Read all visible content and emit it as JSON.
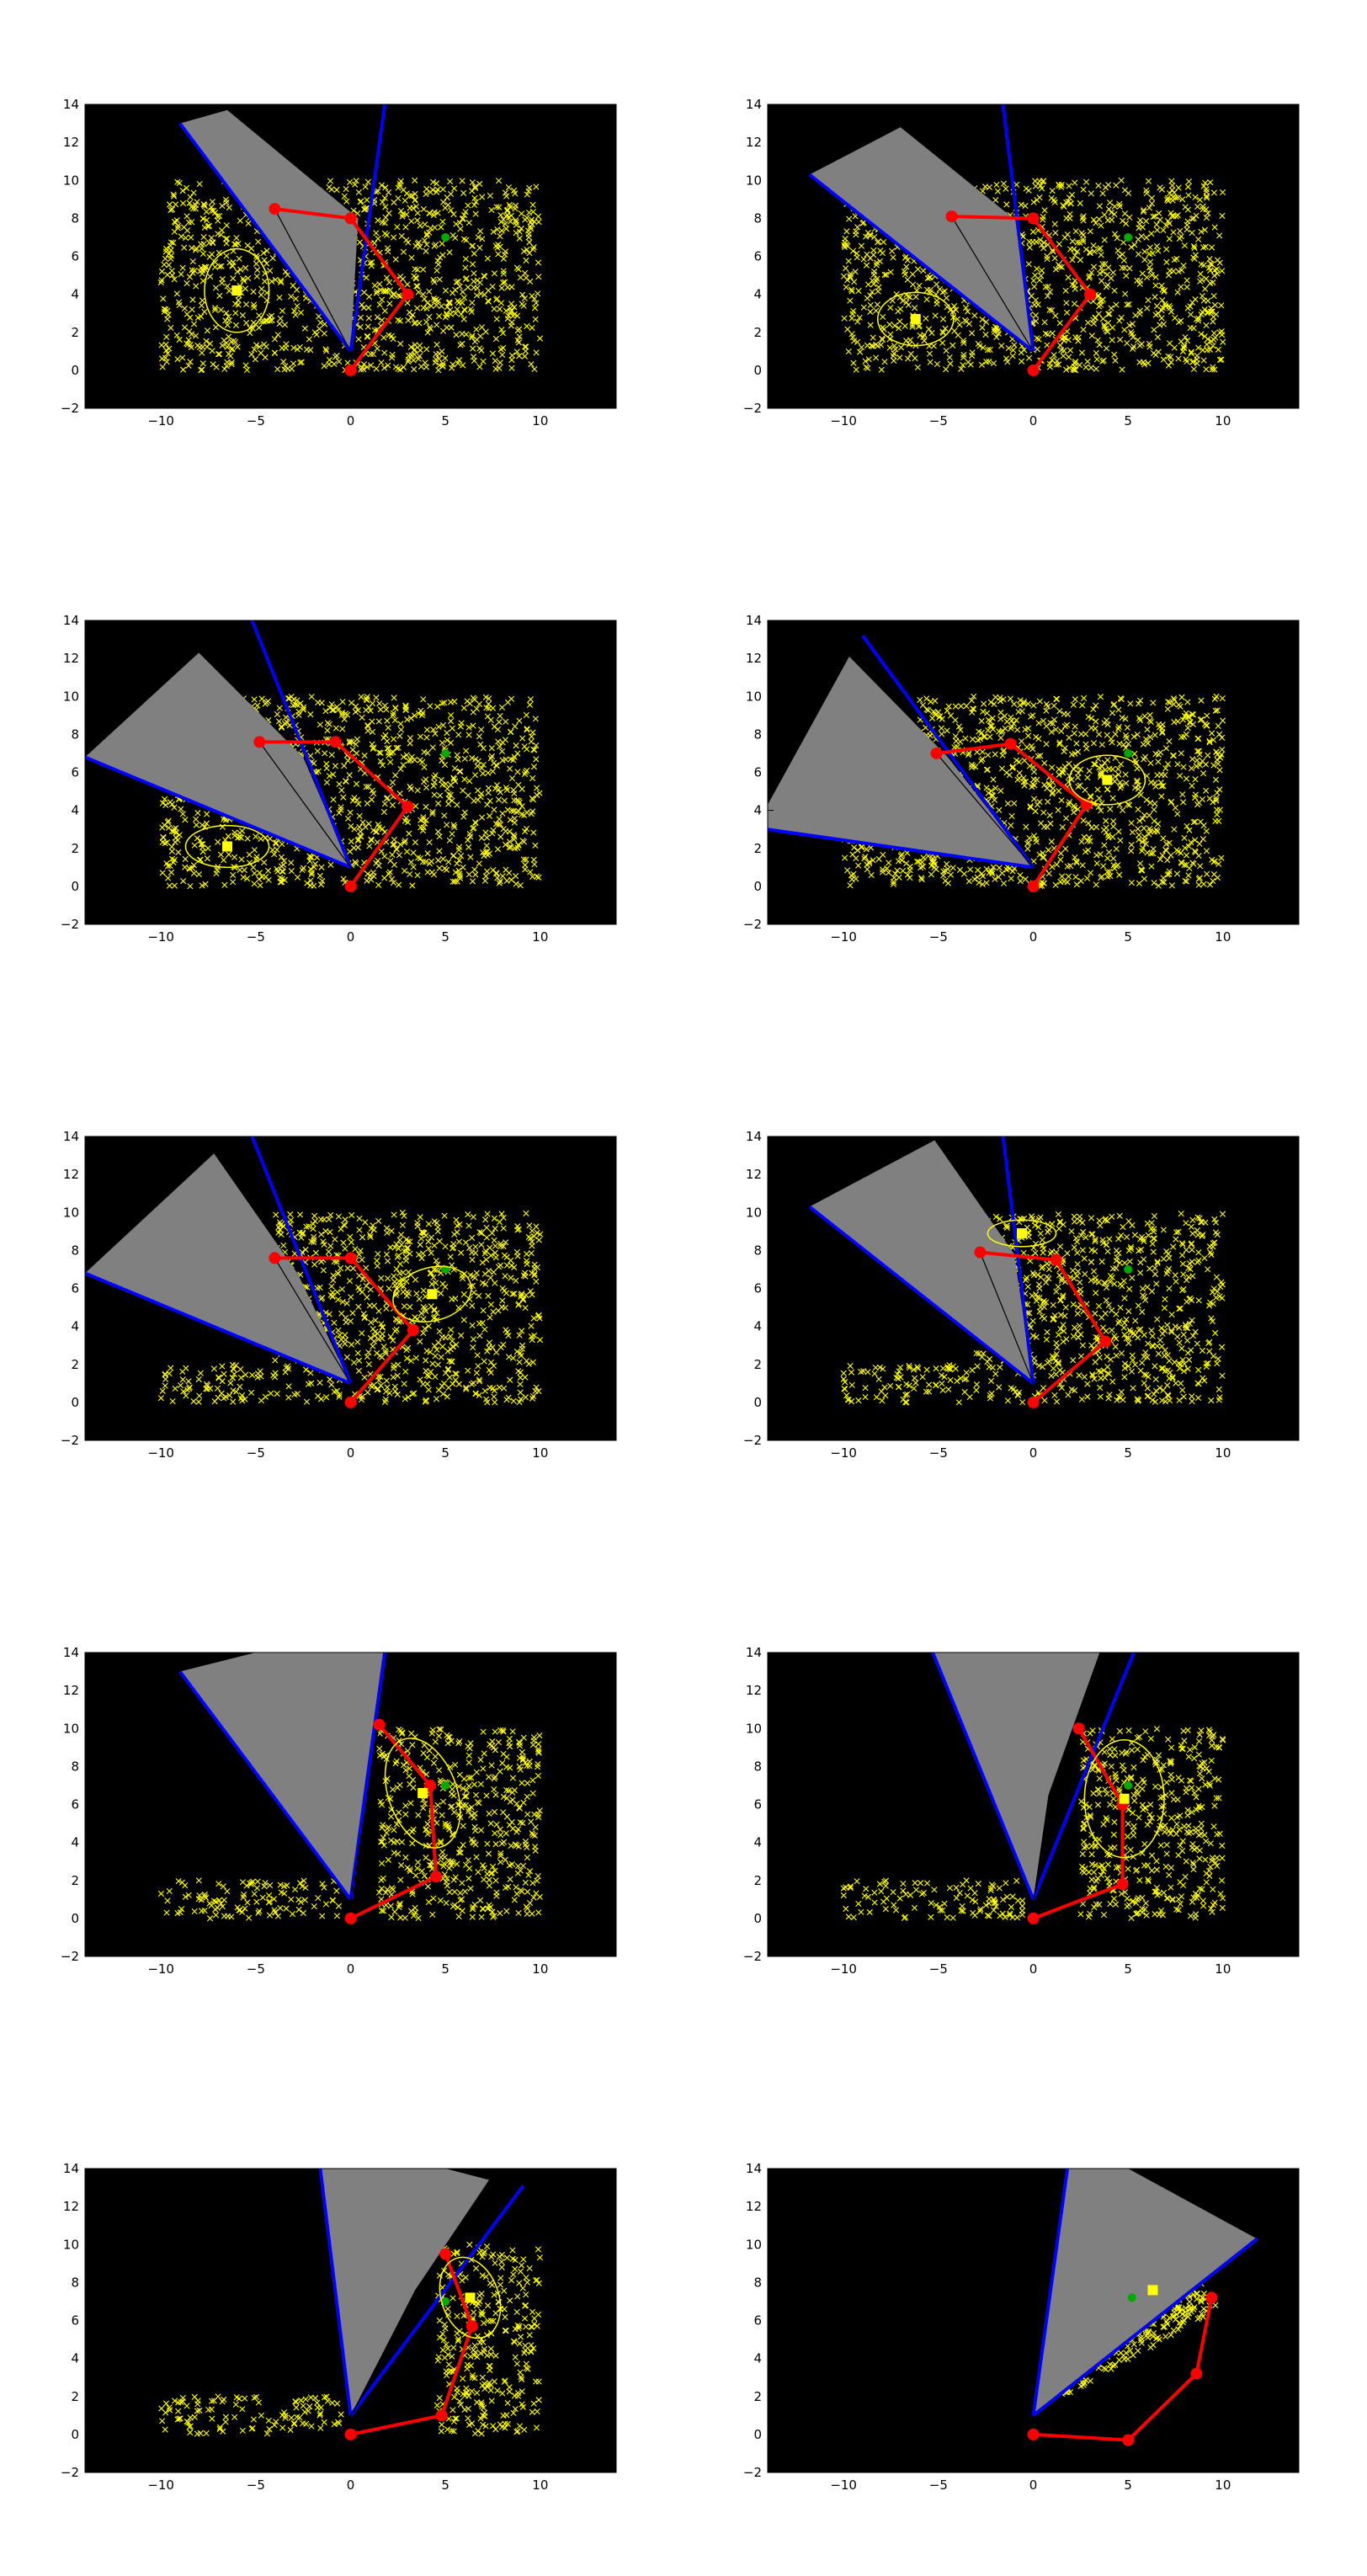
{
  "figure": {
    "colors": {
      "background": "#000000",
      "particles": "#ffff00",
      "arm": "#ff0000",
      "joint": "#ff0000",
      "fov_fill": "#808080",
      "fov_edge": "#0000ff",
      "estimate": "#ffff00",
      "covariance": "#ffff00",
      "target": "#00aa00",
      "center_line": "#000000"
    }
  },
  "chart_data": [
    {
      "type": "scatter",
      "xlim": [
        -14,
        14
      ],
      "ylim": [
        -2,
        14
      ],
      "xticks": [
        -10,
        -5,
        0,
        5,
        10
      ],
      "yticks": [
        -2,
        0,
        2,
        4,
        6,
        8,
        10,
        12,
        14
      ],
      "xtick_labels": [
        "−10",
        "−5",
        "0",
        "5",
        "10"
      ],
      "ytick_labels": [
        "−2",
        "0",
        "2",
        "4",
        "6",
        "8",
        "10",
        "12",
        "14"
      ],
      "grid": false,
      "particles": {
        "rects": [
          [
            -10,
            0,
            10,
            10
          ]
        ]
      },
      "arm_joints": [
        [
          0,
          0
        ],
        [
          3,
          4
        ],
        [
          0,
          8
        ],
        [
          -4,
          8.5
        ]
      ],
      "fov_vertex": [
        0,
        1
      ],
      "fov_edges": [
        [
          -9,
          13
        ],
        [
          1.8,
          14
        ]
      ],
      "fov_polygon": [
        [
          0,
          1
        ],
        [
          -9,
          13
        ],
        [
          -6.5,
          13.7
        ],
        [
          0.4,
          8
        ]
      ],
      "center_line": [
        -4,
        8.5
      ],
      "estimate": [
        -6,
        4.2
      ],
      "covariance": {
        "rx": 1.7,
        "ry": 2.2,
        "rot": 0
      },
      "target": [
        5,
        7
      ]
    },
    {
      "type": "scatter",
      "xlim": [
        -14,
        14
      ],
      "ylim": [
        -2,
        14
      ],
      "xticks": [
        -10,
        -5,
        0,
        5,
        10
      ],
      "yticks": [
        -2,
        0,
        2,
        4,
        6,
        8,
        10,
        12,
        14
      ],
      "xtick_labels": [
        "−10",
        "−5",
        "0",
        "5",
        "10"
      ],
      "ytick_labels": [
        "−2",
        "0",
        "2",
        "4",
        "6",
        "8",
        "10",
        "12",
        "14"
      ],
      "grid": false,
      "particles": {
        "rects": [
          [
            -10,
            0,
            10,
            10
          ]
        ]
      },
      "arm_joints": [
        [
          0,
          0
        ],
        [
          3,
          4
        ],
        [
          0,
          8
        ],
        [
          -4.3,
          8.1
        ]
      ],
      "fov_vertex": [
        0,
        1
      ],
      "fov_edges": [
        [
          -11.8,
          10.3
        ],
        [
          -1.6,
          14
        ]
      ],
      "fov_polygon": [
        [
          0,
          1
        ],
        [
          -11.8,
          10.3
        ],
        [
          -7,
          12.8
        ],
        [
          -0.8,
          7.8
        ]
      ],
      "center_line": [
        -4.3,
        8.1
      ],
      "estimate": [
        -6.2,
        2.7
      ],
      "covariance": {
        "rx": 2,
        "ry": 1.4,
        "rot": 0
      },
      "target": [
        5,
        7
      ]
    },
    {
      "type": "scatter",
      "xlim": [
        -14,
        14
      ],
      "ylim": [
        -2,
        14
      ],
      "xticks": [
        -10,
        -5,
        0,
        5,
        10
      ],
      "yticks": [
        -2,
        0,
        2,
        4,
        6,
        8,
        10,
        12,
        14
      ],
      "xtick_labels": [
        "−10",
        "−5",
        "0",
        "5",
        "10"
      ],
      "ytick_labels": [
        "−2",
        "0",
        "2",
        "4",
        "6",
        "8",
        "10",
        "12",
        "14"
      ],
      "grid": false,
      "particles": {
        "rects": [
          [
            -10,
            0,
            10,
            10
          ]
        ]
      },
      "arm_joints": [
        [
          0,
          0
        ],
        [
          3,
          4.2
        ],
        [
          -0.8,
          7.6
        ],
        [
          -4.8,
          7.6
        ]
      ],
      "fov_vertex": [
        0,
        1
      ],
      "fov_edges": [
        [
          -14,
          6.8
        ],
        [
          -5.2,
          14
        ]
      ],
      "fov_polygon": [
        [
          0,
          1
        ],
        [
          -14,
          6.8
        ],
        [
          -8,
          12.3
        ],
        [
          -2.5,
          6.8
        ]
      ],
      "center_line": [
        -4.8,
        7.6
      ],
      "estimate": [
        -6.5,
        2.1
      ],
      "covariance": {
        "rx": 2.2,
        "ry": 1.1,
        "rot": 0
      },
      "target": [
        5,
        7
      ]
    },
    {
      "type": "scatter",
      "xlim": [
        -14,
        14
      ],
      "ylim": [
        -2,
        14
      ],
      "xticks": [
        -10,
        -5,
        0,
        5,
        10
      ],
      "yticks": [
        -2,
        0,
        2,
        4,
        6,
        8,
        10,
        12,
        14
      ],
      "xtick_labels": [
        "−10",
        "−5",
        "0",
        "5",
        "10"
      ],
      "ytick_labels": [
        "−2",
        "0",
        "2",
        "4",
        "6",
        "8",
        "10",
        "12",
        "14"
      ],
      "grid": false,
      "particles": {
        "rects": [
          [
            -10,
            0,
            10,
            3
          ],
          [
            -6,
            3,
            10,
            10
          ]
        ]
      },
      "arm_joints": [
        [
          0,
          0
        ],
        [
          2.8,
          4.3
        ],
        [
          -1.2,
          7.5
        ],
        [
          -5.1,
          7
        ]
      ],
      "fov_vertex": [
        0,
        1
      ],
      "fov_edges": [
        [
          -14,
          3
        ],
        [
          -9,
          13.2
        ]
      ],
      "fov_polygon": [
        [
          0,
          1
        ],
        [
          -14,
          3
        ],
        [
          -14,
          4.3
        ],
        [
          -9.7,
          12.1
        ],
        [
          -4.5,
          6.8
        ]
      ],
      "center_line": [
        -5.1,
        7
      ],
      "estimate": [
        3.9,
        5.6
      ],
      "covariance": {
        "rx": 2,
        "ry": 1.3,
        "rot": 0
      },
      "target": [
        5,
        7
      ]
    },
    {
      "type": "scatter",
      "xlim": [
        -14,
        14
      ],
      "ylim": [
        -2,
        14
      ],
      "xticks": [
        -10,
        -5,
        0,
        5,
        10
      ],
      "yticks": [
        -2,
        0,
        2,
        4,
        6,
        8,
        10,
        12,
        14
      ],
      "xtick_labels": [
        "−10",
        "−5",
        "0",
        "5",
        "10"
      ],
      "ytick_labels": [
        "−2",
        "0",
        "2",
        "4",
        "6",
        "8",
        "10",
        "12",
        "14"
      ],
      "grid": false,
      "particles": {
        "rects": [
          [
            -10,
            0,
            -0.5,
            2
          ],
          [
            -4,
            2,
            10,
            10
          ],
          [
            0,
            0,
            10,
            2
          ]
        ]
      },
      "arm_joints": [
        [
          0,
          0
        ],
        [
          3.3,
          3.8
        ],
        [
          0,
          7.6
        ],
        [
          -4,
          7.6
        ]
      ],
      "fov_vertex": [
        0,
        1
      ],
      "fov_edges": [
        [
          -14,
          6.8
        ],
        [
          -5.2,
          14
        ]
      ],
      "fov_polygon": [
        [
          0,
          1
        ],
        [
          -14,
          6.8
        ],
        [
          -7.2,
          13.1
        ],
        [
          -2.8,
          6.8
        ]
      ],
      "center_line": [
        -4,
        7.6
      ],
      "estimate": [
        4.3,
        5.7
      ],
      "covariance": {
        "rx": 2.1,
        "ry": 1.4,
        "rot": -15
      },
      "target": [
        5,
        7
      ]
    },
    {
      "type": "scatter",
      "xlim": [
        -14,
        14
      ],
      "ylim": [
        -2,
        14
      ],
      "xticks": [
        -10,
        -5,
        0,
        5,
        10
      ],
      "yticks": [
        -2,
        0,
        2,
        4,
        6,
        8,
        10,
        12,
        14
      ],
      "xtick_labels": [
        "−10",
        "−5",
        "0",
        "5",
        "10"
      ],
      "ytick_labels": [
        "−2",
        "0",
        "2",
        "4",
        "6",
        "8",
        "10",
        "12",
        "14"
      ],
      "grid": false,
      "particles": {
        "rects": [
          [
            -10,
            0,
            -0.5,
            2
          ],
          [
            -3,
            2,
            10,
            10
          ],
          [
            0,
            0,
            10,
            2
          ]
        ]
      },
      "arm_joints": [
        [
          0,
          0
        ],
        [
          3.8,
          3.2
        ],
        [
          1.2,
          7.5
        ],
        [
          -2.8,
          7.9
        ]
      ],
      "fov_vertex": [
        0,
        1
      ],
      "fov_edges": [
        [
          -11.8,
          10.3
        ],
        [
          -1.6,
          14
        ]
      ],
      "fov_polygon": [
        [
          0,
          1
        ],
        [
          -11.8,
          10.3
        ],
        [
          -5.2,
          13.8
        ],
        [
          -1,
          7.8
        ]
      ],
      "center_line": [
        -2.8,
        7.9
      ],
      "estimate": [
        -0.6,
        8.9
      ],
      "covariance": {
        "rx": 1.8,
        "ry": 0.7,
        "rot": 0
      },
      "target": [
        5,
        7
      ]
    },
    {
      "type": "scatter",
      "xlim": [
        -14,
        14
      ],
      "ylim": [
        -2,
        14
      ],
      "xticks": [
        -10,
        -5,
        0,
        5,
        10
      ],
      "yticks": [
        -2,
        0,
        2,
        4,
        6,
        8,
        10,
        12,
        14
      ],
      "xtick_labels": [
        "−10",
        "−5",
        "0",
        "5",
        "10"
      ],
      "ytick_labels": [
        "−2",
        "0",
        "2",
        "4",
        "6",
        "8",
        "10",
        "12",
        "14"
      ],
      "grid": false,
      "particles": {
        "rects": [
          [
            -10,
            0,
            -0.5,
            2
          ],
          [
            1.5,
            0,
            10,
            10
          ]
        ]
      },
      "arm_joints": [
        [
          0,
          0
        ],
        [
          4.5,
          2.2
        ],
        [
          4.2,
          7
        ],
        [
          1.5,
          10.2
        ]
      ],
      "fov_vertex": [
        0,
        1
      ],
      "fov_edges": [
        [
          -9,
          13
        ],
        [
          1.8,
          14
        ]
      ],
      "fov_polygon": [
        [
          0,
          1
        ],
        [
          -9,
          13
        ],
        [
          -5,
          14
        ],
        [
          1.8,
          14
        ]
      ],
      "center_line": [
        1.5,
        10.2
      ],
      "estimate": [
        3.8,
        6.6
      ],
      "covariance": {
        "rx": 1.8,
        "ry": 3,
        "rot": -20
      },
      "target": [
        5,
        7
      ]
    },
    {
      "type": "scatter",
      "xlim": [
        -14,
        14
      ],
      "ylim": [
        -2,
        14
      ],
      "xticks": [
        -10,
        -5,
        0,
        5,
        10
      ],
      "yticks": [
        -2,
        0,
        2,
        4,
        6,
        8,
        10,
        12,
        14
      ],
      "xtick_labels": [
        "−10",
        "−5",
        "0",
        "5",
        "10"
      ],
      "ytick_labels": [
        "−2",
        "0",
        "2",
        "4",
        "6",
        "8",
        "10",
        "12",
        "14"
      ],
      "grid": false,
      "particles": {
        "rects": [
          [
            -10,
            0,
            -0.5,
            2
          ],
          [
            2.5,
            0,
            10,
            10
          ]
        ]
      },
      "arm_joints": [
        [
          0,
          0
        ],
        [
          4.7,
          1.8
        ],
        [
          4.7,
          6
        ],
        [
          2.4,
          10
        ]
      ],
      "fov_vertex": [
        0,
        1
      ],
      "fov_edges": [
        [
          -5.3,
          14
        ],
        [
          5.3,
          14
        ]
      ],
      "fov_polygon": [
        [
          0,
          1
        ],
        [
          -5.3,
          14
        ],
        [
          3.5,
          14
        ],
        [
          0.8,
          6.5
        ]
      ],
      "center_line": [
        2.4,
        10
      ],
      "estimate": [
        4.8,
        6.3
      ],
      "covariance": {
        "rx": 2.1,
        "ry": 3.1,
        "rot": 0
      },
      "target": [
        5,
        7
      ]
    },
    {
      "type": "scatter",
      "xlim": [
        -14,
        14
      ],
      "ylim": [
        -2,
        14
      ],
      "xticks": [
        -10,
        -5,
        0,
        5,
        10
      ],
      "yticks": [
        -2,
        0,
        2,
        4,
        6,
        8,
        10,
        12,
        14
      ],
      "xtick_labels": [
        "−10",
        "−5",
        "0",
        "5",
        "10"
      ],
      "ytick_labels": [
        "−2",
        "0",
        "2",
        "4",
        "6",
        "8",
        "10",
        "12",
        "14"
      ],
      "grid": false,
      "particles": {
        "rects": [
          [
            -10,
            0,
            -0.5,
            2
          ],
          [
            4.5,
            0,
            10,
            10
          ]
        ]
      },
      "arm_joints": [
        [
          0,
          0
        ],
        [
          4.8,
          1
        ],
        [
          6.4,
          5.7
        ],
        [
          5,
          9.5
        ]
      ],
      "fov_vertex": [
        0,
        1
      ],
      "fov_edges": [
        [
          -1.6,
          14
        ],
        [
          9.1,
          13.1
        ]
      ],
      "fov_polygon": [
        [
          0,
          1
        ],
        [
          -1.6,
          14
        ],
        [
          5,
          14
        ],
        [
          7.3,
          13.4
        ],
        [
          3.4,
          7.6
        ]
      ],
      "center_line": [
        5,
        9.5
      ],
      "estimate": [
        6.3,
        7.2
      ],
      "covariance": {
        "rx": 1.5,
        "ry": 2.2,
        "rot": -20
      },
      "target": [
        5,
        7
      ]
    },
    {
      "type": "scatter",
      "xlim": [
        -14,
        14
      ],
      "ylim": [
        -2,
        14
      ],
      "xticks": [
        -10,
        -5,
        0,
        5,
        10
      ],
      "yticks": [
        -2,
        0,
        2,
        4,
        6,
        8,
        10,
        12,
        14
      ],
      "xtick_labels": [
        "−10",
        "−5",
        "0",
        "5",
        "10"
      ],
      "ytick_labels": [
        "−2",
        "0",
        "2",
        "4",
        "6",
        "8",
        "10",
        "12",
        "14"
      ],
      "grid": false,
      "particles": {
        "wedge": true
      },
      "arm_joints": [
        [
          0,
          0
        ],
        [
          5,
          -0.3
        ],
        [
          8.6,
          3.2
        ],
        [
          9.4,
          7.2
        ]
      ],
      "fov_vertex": [
        0,
        1
      ],
      "fov_edges": [
        [
          1.8,
          14
        ],
        [
          11.8,
          10.3
        ]
      ],
      "fov_polygon": [
        [
          0,
          1
        ],
        [
          1.8,
          14
        ],
        [
          5,
          14
        ],
        [
          11.8,
          10.3
        ]
      ],
      "center_line": null,
      "estimate": [
        6.3,
        7.6
      ],
      "covariance": null,
      "target": [
        5.2,
        7.2
      ]
    }
  ]
}
